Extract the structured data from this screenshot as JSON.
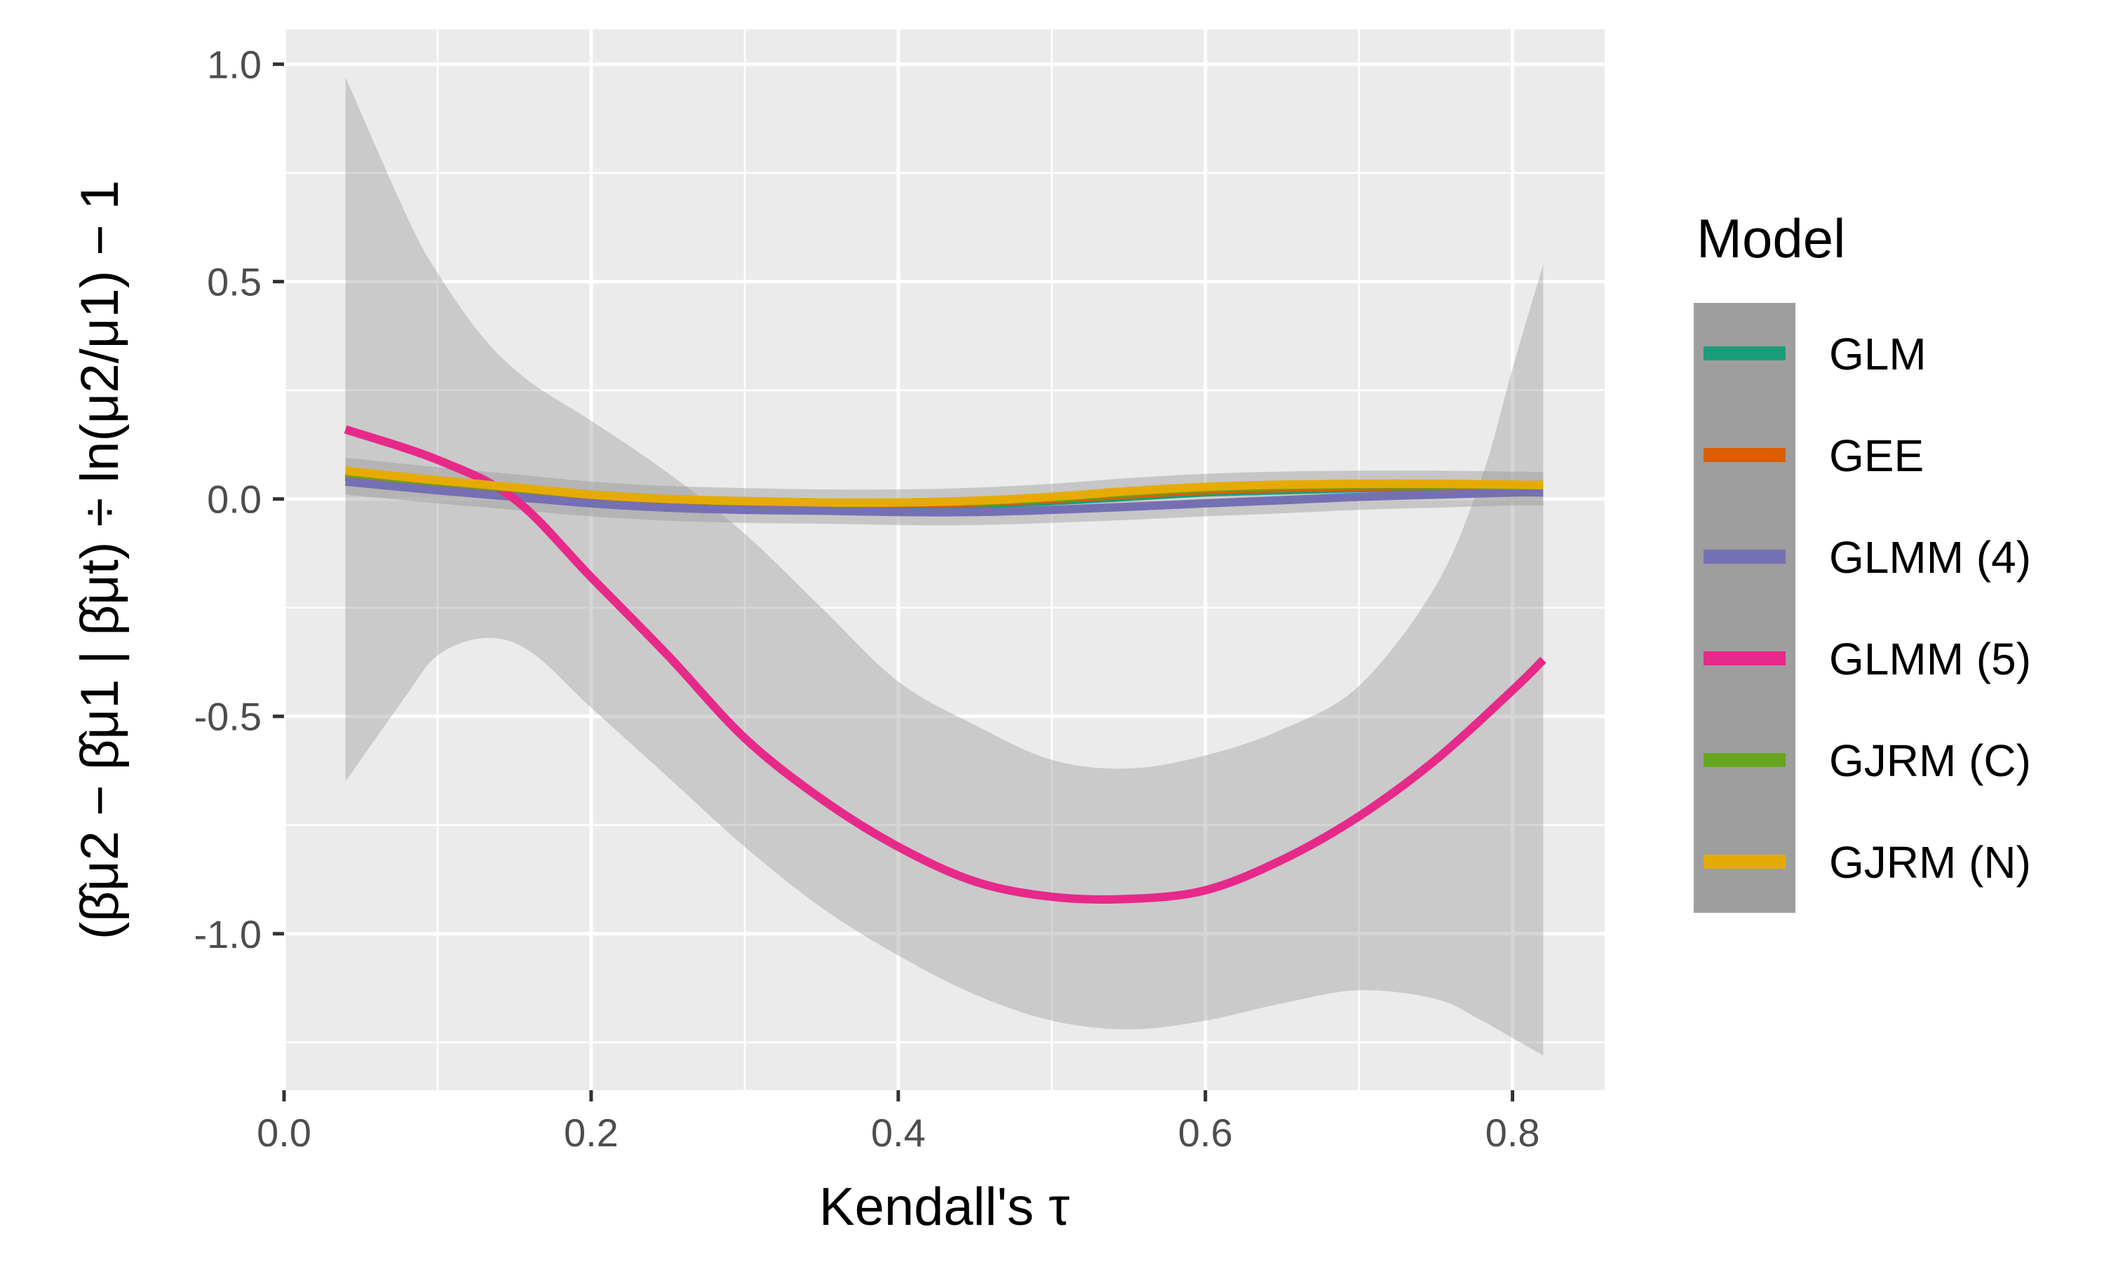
{
  "chart_data": {
    "type": "line",
    "xlabel": "Kendall's τ",
    "ylabel": "(β̂μ2 − β̂μ1 | β̂μt) ÷ ln(μ2/μ1) − 1",
    "xlim": [
      0.0,
      0.86
    ],
    "ylim": [
      -1.36,
      1.08
    ],
    "x_ticks": [
      "0.0",
      "0.2",
      "0.4",
      "0.6",
      "0.8"
    ],
    "y_ticks": [
      "1.0",
      "0.5",
      "0.0",
      "-0.5",
      "-1.0"
    ],
    "grid": true,
    "legend_position": "right",
    "legend_title": "Model",
    "x": [
      0.04,
      0.1,
      0.15,
      0.2,
      0.25,
      0.3,
      0.35,
      0.4,
      0.45,
      0.5,
      0.55,
      0.6,
      0.65,
      0.7,
      0.75,
      0.8,
      0.82
    ],
    "series": [
      {
        "name": "GLM",
        "color": "#1b9e77",
        "values": [
          0.05,
          0.03,
          0.015,
          0.0,
          -0.01,
          -0.015,
          -0.015,
          -0.015,
          -0.012,
          -0.005,
          0.005,
          0.015,
          0.02,
          0.025,
          0.028,
          0.03,
          0.03
        ]
      },
      {
        "name": "GEE",
        "color": "#d95f02",
        "values": [
          0.055,
          0.035,
          0.02,
          0.005,
          -0.005,
          -0.01,
          -0.012,
          -0.01,
          -0.008,
          0.0,
          0.01,
          0.02,
          0.025,
          0.028,
          0.03,
          0.032,
          0.032
        ]
      },
      {
        "name": "GLMM (4)",
        "color": "#7570b3",
        "values": [
          0.04,
          0.02,
          0.005,
          -0.01,
          -0.02,
          -0.025,
          -0.027,
          -0.03,
          -0.03,
          -0.025,
          -0.018,
          -0.01,
          -0.003,
          0.005,
          0.01,
          0.015,
          0.015
        ]
      },
      {
        "name": "GLMM (5)",
        "color": "#e7298a",
        "values": [
          0.16,
          0.09,
          0.0,
          -0.18,
          -0.36,
          -0.55,
          -0.69,
          -0.8,
          -0.88,
          -0.915,
          -0.92,
          -0.9,
          -0.83,
          -0.73,
          -0.6,
          -0.44,
          -0.37
        ]
      },
      {
        "name": "GJRM (C)",
        "color": "#66a61e",
        "values": [
          0.06,
          0.04,
          0.025,
          0.01,
          0.0,
          -0.005,
          -0.008,
          -0.008,
          -0.005,
          0.003,
          0.015,
          0.025,
          0.03,
          0.033,
          0.033,
          0.032,
          0.032
        ]
      },
      {
        "name": "GJRM (N)",
        "color": "#e6ab02",
        "values": [
          0.065,
          0.043,
          0.027,
          0.01,
          0.0,
          -0.005,
          -0.008,
          -0.008,
          -0.004,
          0.005,
          0.018,
          0.028,
          0.033,
          0.035,
          0.035,
          0.033,
          0.032
        ]
      }
    ],
    "confidence_band": {
      "x": [
        0.04,
        0.08,
        0.1,
        0.13,
        0.16,
        0.2,
        0.25,
        0.3,
        0.35,
        0.4,
        0.45,
        0.5,
        0.55,
        0.6,
        0.65,
        0.7,
        0.75,
        0.78,
        0.8,
        0.82
      ],
      "upper": [
        0.97,
        0.65,
        0.52,
        0.37,
        0.27,
        0.18,
        0.06,
        -0.08,
        -0.25,
        -0.42,
        -0.52,
        -0.6,
        -0.62,
        -0.59,
        -0.53,
        -0.43,
        -0.2,
        0.05,
        0.3,
        0.54
      ],
      "lower": [
        -0.65,
        -0.45,
        -0.36,
        -0.32,
        -0.35,
        -0.48,
        -0.64,
        -0.8,
        -0.94,
        -1.05,
        -1.14,
        -1.2,
        -1.22,
        -1.2,
        -1.16,
        -1.13,
        -1.15,
        -1.2,
        -1.24,
        -1.28
      ]
    }
  }
}
